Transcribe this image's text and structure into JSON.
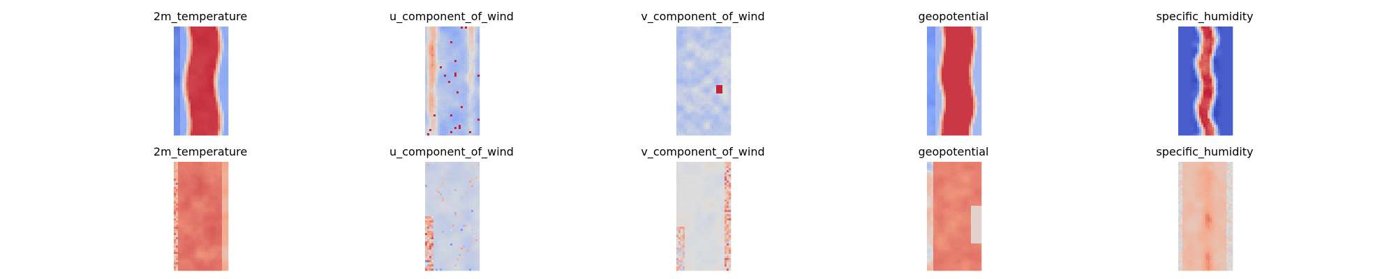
{
  "figure": {
    "rows": [
      {
        "panels": [
          {
            "title": "2m_temperature",
            "pattern": "temp_top"
          },
          {
            "title": "u_component_of_wind",
            "pattern": "uwind_top"
          },
          {
            "title": "v_component_of_wind",
            "pattern": "vwind_top"
          },
          {
            "title": "geopotential",
            "pattern": "geo_top"
          },
          {
            "title": "specific_humidity",
            "pattern": "hum_top"
          }
        ]
      },
      {
        "panels": [
          {
            "title": "2m_temperature",
            "pattern": "temp_bot"
          },
          {
            "title": "u_component_of_wind",
            "pattern": "uwind_bot"
          },
          {
            "title": "v_component_of_wind",
            "pattern": "vwind_bot"
          },
          {
            "title": "geopotential",
            "pattern": "geo_bot"
          },
          {
            "title": "specific_humidity",
            "pattern": "hum_bot"
          }
        ]
      }
    ],
    "colormap": "coolwarm"
  },
  "chart_data": {
    "type": "heatmap",
    "grid": "off",
    "colormap": "coolwarm",
    "panels": [
      "2m_temperature",
      "u_component_of_wind",
      "v_component_of_wind",
      "geopotential",
      "specific_humidity",
      "2m_temperature",
      "u_component_of_wind",
      "v_component_of_wind",
      "geopotential",
      "specific_humidity"
    ]
  }
}
